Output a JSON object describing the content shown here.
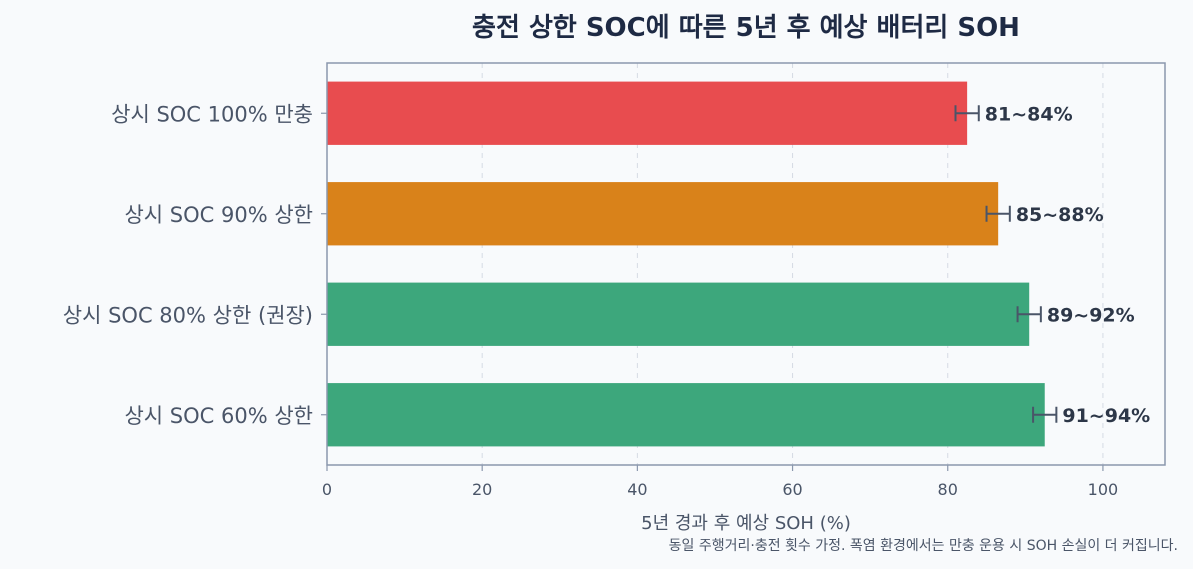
{
  "chart_data": {
    "type": "bar",
    "orientation": "horizontal",
    "title": "충전 상한 SOC에 따른 5년 후 예상 배터리 SOH",
    "xlabel": "5년 경과 후 예상 SOH (%)",
    "xlim": [
      0,
      108
    ],
    "xticks": [
      0,
      20,
      40,
      60,
      80,
      100
    ],
    "grid": "vertical-dashed",
    "categories": [
      "상시 SOC 100% 만충",
      "상시 SOC 90% 상한",
      "상시 SOC 80% 상한 (권장)",
      "상시 SOC 60% 상한"
    ],
    "values": [
      82.5,
      86.5,
      90.5,
      92.5
    ],
    "error_low": [
      81,
      85,
      89,
      91
    ],
    "error_high": [
      84,
      88,
      92,
      94
    ],
    "value_labels": [
      "81~84%",
      "85~88%",
      "89~92%",
      "91~94%"
    ],
    "colors": [
      "#e84c4f",
      "#d9821a",
      "#3da77c",
      "#3da77c"
    ],
    "footnote": "동일 주행거리·충전 횟수 가정. 폭염 환경에서는 만충 운용 시 SOH 손실이 더 커집니다."
  }
}
